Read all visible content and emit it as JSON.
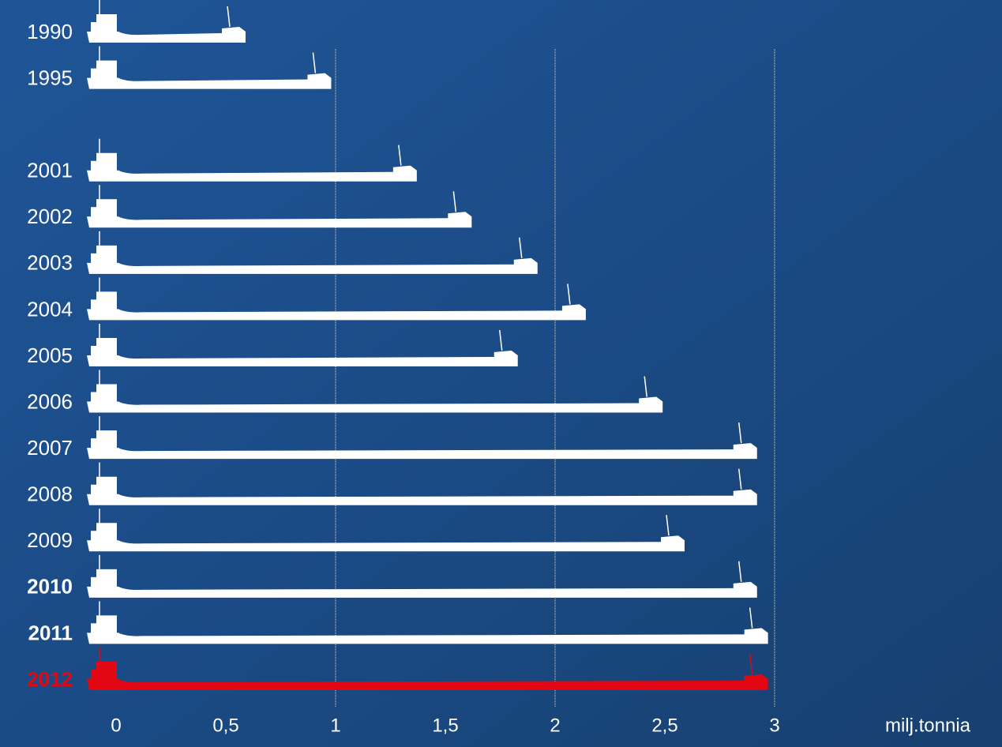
{
  "chart_data": {
    "type": "bar",
    "orientation": "horizontal",
    "categories": [
      "1990",
      "1995",
      "2001",
      "2002",
      "2003",
      "2004",
      "2005",
      "2006",
      "2007",
      "2008",
      "2009",
      "2010",
      "2011",
      "2012"
    ],
    "values": [
      0.59,
      0.98,
      1.37,
      1.62,
      1.92,
      2.14,
      1.83,
      2.49,
      2.92,
      2.92,
      2.59,
      2.92,
      2.97,
      2.97
    ],
    "colors": [
      "#ffffff",
      "#ffffff",
      "#ffffff",
      "#ffffff",
      "#ffffff",
      "#ffffff",
      "#ffffff",
      "#ffffff",
      "#ffffff",
      "#ffffff",
      "#ffffff",
      "#ffffff",
      "#ffffff",
      "#e30613"
    ],
    "x_label": "milj.tonnia",
    "xlim": [
      0,
      3
    ],
    "xticks": [
      0,
      {
        "value": 0.5,
        "label": "0,5"
      },
      1,
      {
        "value": 1.5,
        "label": "1,5"
      },
      2,
      {
        "value": 2.5,
        "label": "2,5"
      },
      3
    ],
    "grid_ticks": [
      1,
      2,
      3
    ]
  }
}
